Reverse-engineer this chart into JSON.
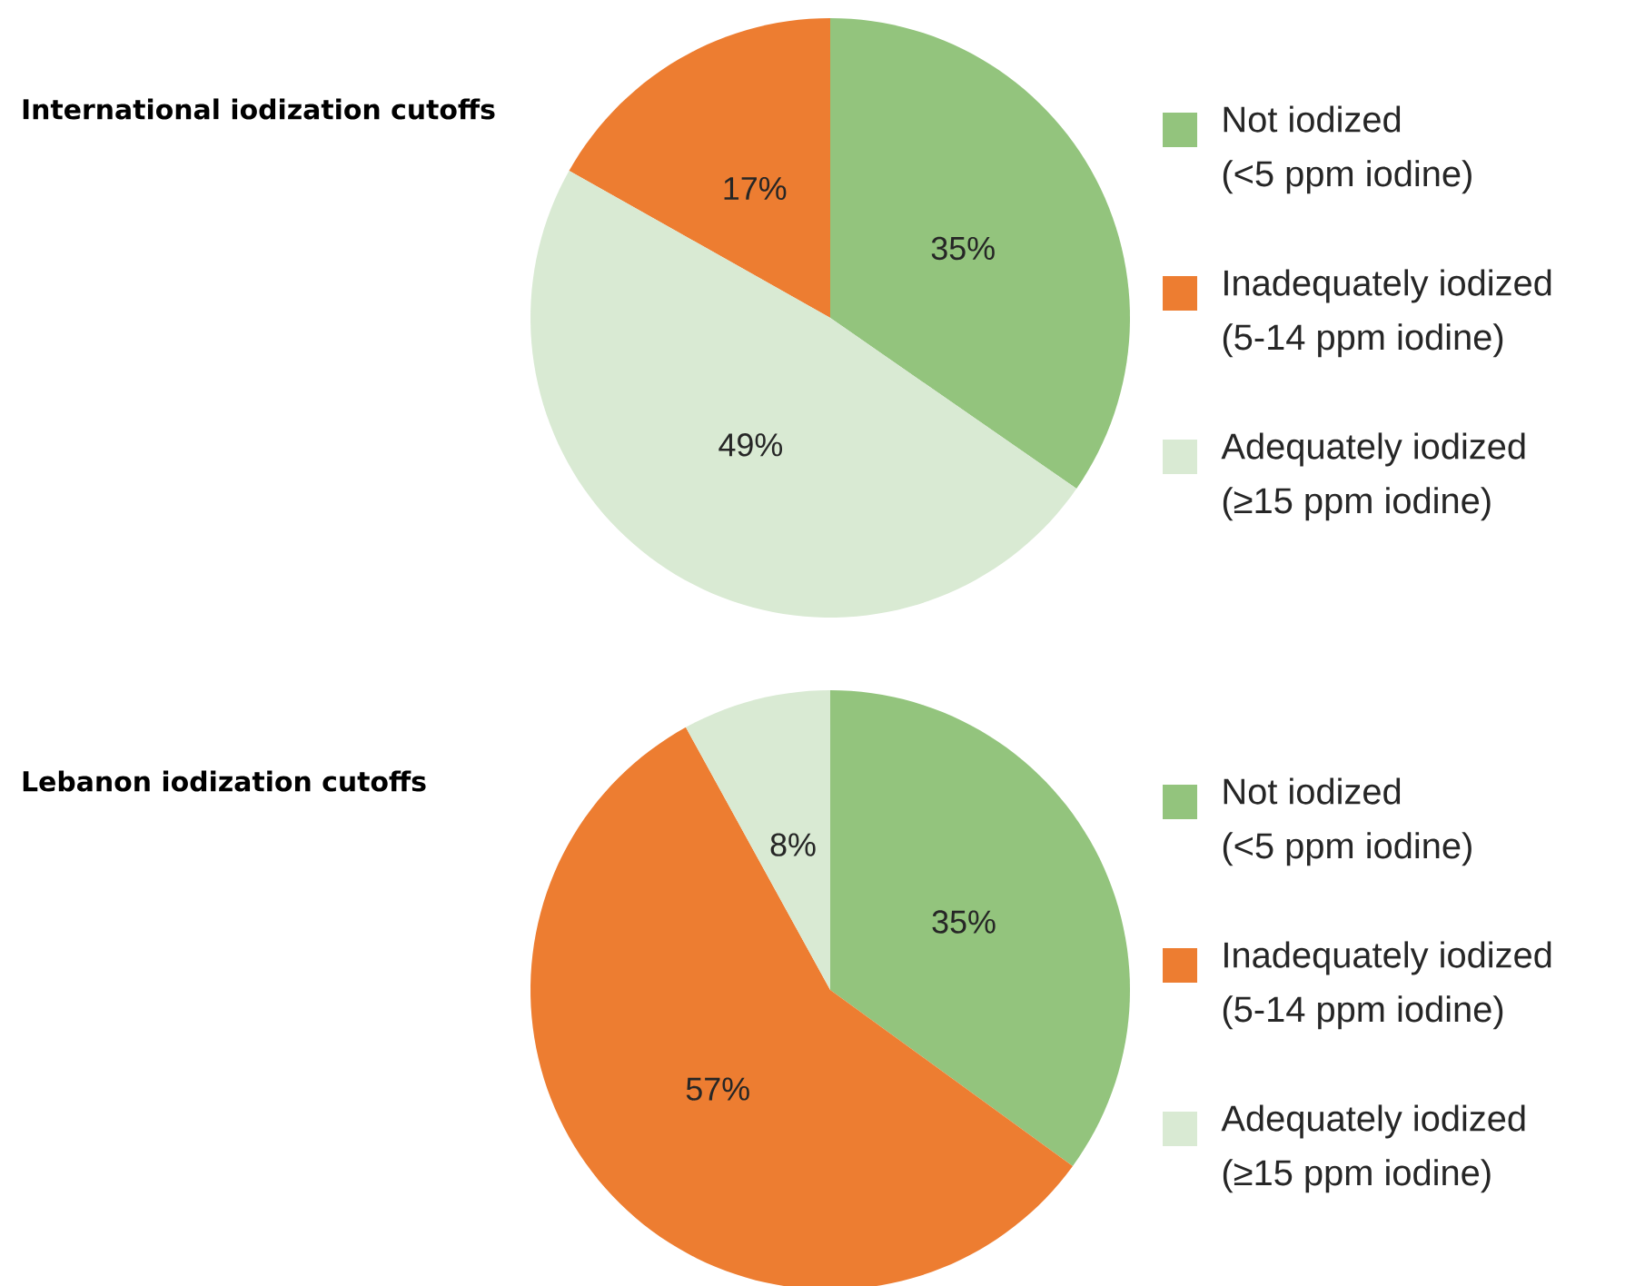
{
  "chart_data": [
    {
      "type": "pie",
      "title": "International iodization cutoffs",
      "categories": [
        "Not iodized (<5 ppm iodine)",
        "Inadequately iodized (5-14 ppm iodine)",
        "Adequately iodized (≥15 ppm iodine)"
      ],
      "values": [
        35,
        17,
        49
      ],
      "value_labels": [
        "35%",
        "17%",
        "49%"
      ],
      "colors": [
        "#93c47d",
        "#ed7d31",
        "#d9ead3"
      ],
      "legend": "right"
    },
    {
      "type": "pie",
      "title": "Lebanon iodization cutoffs",
      "categories": [
        "Not iodized (<5 ppm iodine)",
        "Inadequately iodized (5-14 ppm iodine)",
        "Adequately iodized (≥15 ppm iodine)"
      ],
      "values": [
        35,
        57,
        8
      ],
      "value_labels": [
        "35%",
        "57%",
        "8%"
      ],
      "colors": [
        "#93c47d",
        "#ed7d31",
        "#d9ead3"
      ],
      "legend": "right"
    }
  ]
}
